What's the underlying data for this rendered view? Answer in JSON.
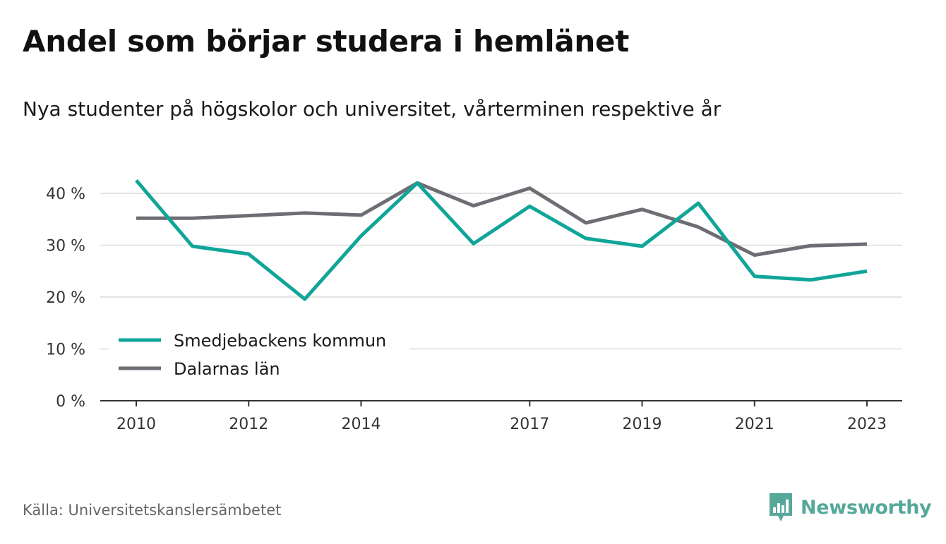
{
  "header": {
    "title": "Andel som börjar studera i hemlänet",
    "subtitle": "Nya studenter på högskolor och universitet, vårterminen respektive år"
  },
  "footer": {
    "source": "Källa: Universitetskanslersämbetet",
    "brand": "Newsworthy",
    "brand_icon": "newsworthy-logo-icon"
  },
  "colors": {
    "series_teal": "#10a599",
    "series_gray": "#6e6d74",
    "grid": "#dcdcdc",
    "axis": "#333333",
    "brand": "#55a89a"
  },
  "chart_data": {
    "type": "line",
    "x": [
      2010,
      2011,
      2012,
      2013,
      2014,
      2015,
      2016,
      2017,
      2018,
      2019,
      2020,
      2021,
      2022,
      2023
    ],
    "x_ticks": [
      2010,
      2012,
      2014,
      2017,
      2019,
      2021,
      2023
    ],
    "x_tick_labels": [
      "2010",
      "2012",
      "2014",
      "2017",
      "2019",
      "2021",
      "2023"
    ],
    "y_ticks": [
      0,
      10,
      20,
      30,
      40
    ],
    "y_tick_labels": [
      "0 %",
      "10 %",
      "20 %",
      "30 %",
      "40 %"
    ],
    "ylim": [
      0,
      45
    ],
    "grid": true,
    "legend_position": "bottom-left",
    "series": [
      {
        "name": "Smedjebackens kommun",
        "color": "#10a599",
        "values": [
          42.5,
          29.8,
          28.3,
          19.6,
          31.8,
          42.0,
          30.3,
          37.5,
          31.3,
          29.8,
          38.1,
          24.0,
          23.3,
          25.0
        ]
      },
      {
        "name": "Dalarnas län",
        "color": "#6e6d74",
        "values": [
          35.2,
          35.2,
          35.7,
          36.2,
          35.8,
          42.0,
          37.6,
          41.0,
          34.3,
          36.9,
          33.5,
          28.1,
          29.9,
          30.2
        ]
      }
    ]
  }
}
